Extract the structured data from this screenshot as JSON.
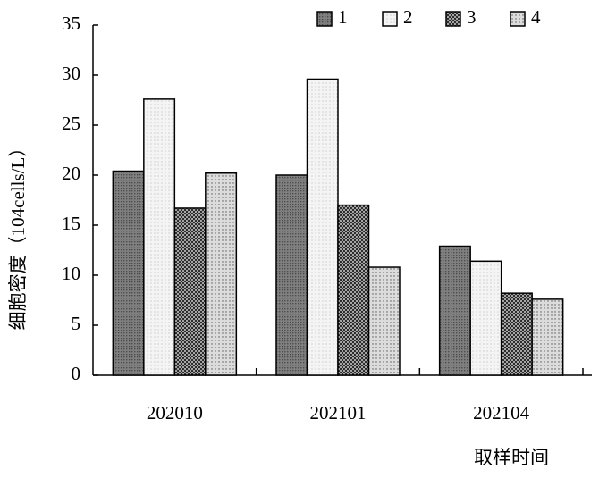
{
  "chart_data": {
    "type": "bar",
    "y_label": "细胞密度（104cells/L）",
    "x_label": "取样时间",
    "categories": [
      "202010",
      "202101",
      "202104"
    ],
    "series": [
      {
        "name": "1",
        "color": "#7f7f7f",
        "values": [
          20.4,
          20.0,
          12.9
        ]
      },
      {
        "name": "2",
        "color": "#f4f4f4",
        "values": [
          27.6,
          29.6,
          11.4
        ]
      },
      {
        "name": "3",
        "color": "#a8a8a8",
        "values": [
          16.7,
          17.0,
          8.2
        ]
      },
      {
        "name": "4",
        "color": "#dcdcdc",
        "values": [
          20.2,
          10.8,
          7.6
        ]
      }
    ],
    "ylim": [
      0,
      35
    ],
    "yticks": [
      0,
      5,
      10,
      15,
      20,
      25,
      30,
      35
    ],
    "grid": false
  }
}
